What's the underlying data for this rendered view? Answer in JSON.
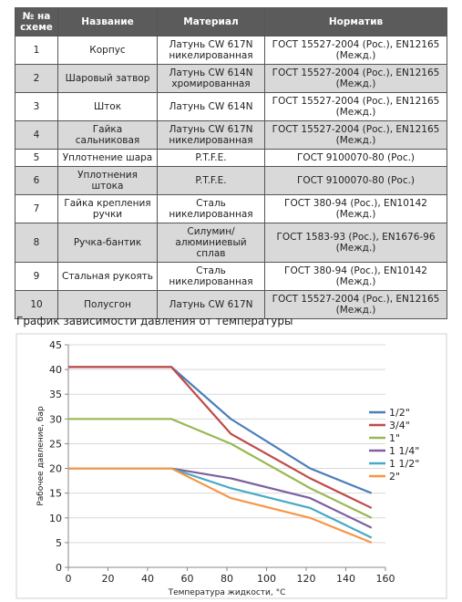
{
  "table": {
    "header": [
      "№ на схеме",
      "Название",
      "Материал",
      "Норматив"
    ],
    "rows": [
      [
        "1",
        "Корпус",
        "Латунь CW 617N никелированная",
        "ГОСТ 15527-2004 (Рос.), EN12165 (Межд.)"
      ],
      [
        "2",
        "Шаровый затвор",
        "Латунь CW 614N хромированная",
        "ГОСТ 15527-2004 (Рос.), EN12165 (Межд.)"
      ],
      [
        "3",
        "Шток",
        "Латунь CW 614N",
        "ГОСТ 15527-2004 (Рос.), EN12165 (Межд.)"
      ],
      [
        "4",
        "Гайка сальниковая",
        "Латунь CW 617N никелированная",
        "ГОСТ 15527-2004 (Рос.), EN12165 (Межд.)"
      ],
      [
        "5",
        "Уплотнение шара",
        "P.T.F.E.",
        "ГОСТ 9100070-80 (Рос.)"
      ],
      [
        "6",
        "Уплотнения штока",
        "P.T.F.E.",
        "ГОСТ 9100070-80 (Рос.)"
      ],
      [
        "7",
        "Гайка крепления ручки",
        "Сталь никелированная",
        "ГОСТ 380-94 (Рос.), EN10142 (Межд.)"
      ],
      [
        "8",
        "Ручка-бантик",
        "Силумин/ алюминиевый сплав",
        "ГОСТ 1583-93 (Рос.), EN1676-96 (Межд.)"
      ],
      [
        "9",
        "Стальная рукоять",
        "Сталь никелированная",
        "ГОСТ 380-94 (Рос.), EN10142 (Межд.)"
      ],
      [
        "10",
        "Полусгон",
        "Латунь CW 617N",
        "ГОСТ 15527-2004 (Рос.), EN12165 (Межд.)"
      ]
    ]
  },
  "chart_heading": "График зависимости давления от температуры",
  "chart_data": {
    "type": "line",
    "x_label": "Температура жидкости, °С",
    "y_label": "Рабочее давление, бар",
    "x": [
      0,
      52,
      82,
      122,
      153
    ],
    "series": [
      {
        "name": "1/2\"",
        "color": "#4a7ebb",
        "values": [
          40.5,
          40.5,
          30,
          20,
          15
        ]
      },
      {
        "name": "3/4\"",
        "color": "#be4b48",
        "values": [
          40.5,
          40.5,
          27,
          18,
          12
        ]
      },
      {
        "name": "1\"",
        "color": "#98b954",
        "values": [
          30,
          30,
          25,
          16,
          10
        ]
      },
      {
        "name": "1 1/4\"",
        "color": "#7d60a0",
        "values": [
          20,
          20,
          18,
          14,
          8
        ]
      },
      {
        "name": "1 1/2\"",
        "color": "#46aac5",
        "values": [
          20,
          20,
          16,
          12,
          6
        ]
      },
      {
        "name": "2\"",
        "color": "#f79646",
        "values": [
          20,
          20,
          14,
          10,
          5
        ]
      }
    ],
    "xlim": [
      0,
      160
    ],
    "xticks": [
      0,
      20,
      40,
      60,
      80,
      100,
      120,
      140,
      160
    ],
    "ylim": [
      0,
      45
    ],
    "yticks": [
      0,
      5,
      10,
      15,
      20,
      25,
      30,
      35,
      40,
      45
    ],
    "grid": true,
    "legend": "right"
  }
}
